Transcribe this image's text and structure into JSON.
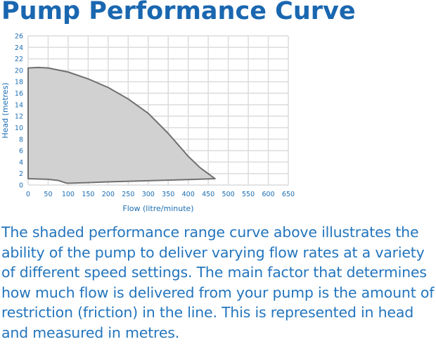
{
  "title": "Pump Performance Curve",
  "description": "The shaded performance range curve above illustrates the ability of the pump to deliver varying flow rates at a variety of different speed settings. The main factor that determines how much flow is delivered from your pump is the amount of restriction (friction) in the line. This is represented in head and measured in metres.",
  "chart_data": {
    "type": "area",
    "title": "Pump Performance Curve",
    "xlabel": "Flow (litre/minute)",
    "ylabel": "Head (metres)",
    "xlim": [
      0,
      650
    ],
    "ylim": [
      0,
      26
    ],
    "xticks": [
      0,
      50,
      100,
      150,
      200,
      250,
      300,
      350,
      400,
      450,
      500,
      550,
      600,
      650
    ],
    "yticks": [
      0,
      2,
      4,
      6,
      8,
      10,
      12,
      14,
      16,
      18,
      20,
      22,
      24,
      26
    ],
    "grid": true,
    "series": [
      {
        "name": "upper",
        "x": [
          0,
          25,
          50,
          100,
          150,
          200,
          250,
          300,
          350,
          400,
          430,
          467
        ],
        "y": [
          20.4,
          20.5,
          20.4,
          19.7,
          18.5,
          17,
          15,
          12.5,
          9,
          5,
          3,
          1.1
        ]
      },
      {
        "name": "lower",
        "x": [
          0,
          50,
          75,
          95,
          100,
          200,
          300,
          400,
          467
        ],
        "y": [
          1.1,
          1.0,
          0.8,
          0.35,
          0.3,
          0.55,
          0.75,
          0.95,
          1.1
        ]
      }
    ],
    "colors": {
      "fill": "#d1d1d1",
      "stroke": "#707070",
      "grid": "#dcdcdc",
      "text": "#1b6db3"
    }
  }
}
